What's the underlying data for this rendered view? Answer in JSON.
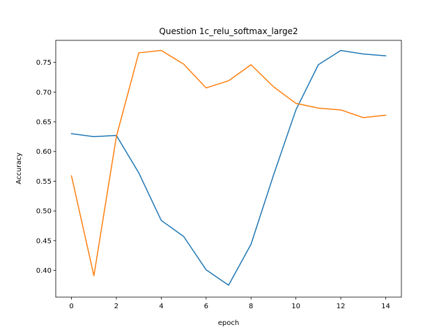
{
  "chart_data": {
    "type": "line",
    "title": "Question 1c_relu_softmax_large2",
    "xlabel": "epoch",
    "ylabel": "Accuracy",
    "x": [
      0,
      1,
      2,
      3,
      4,
      5,
      6,
      7,
      8,
      9,
      10,
      11,
      12,
      13,
      14
    ],
    "xlim": [
      -0.7,
      14.7
    ],
    "ylim": [
      0.355,
      0.787
    ],
    "xticks": [
      0,
      2,
      4,
      6,
      8,
      10,
      12,
      14
    ],
    "yticks": [
      0.4,
      0.45,
      0.5,
      0.55,
      0.6,
      0.65,
      0.7,
      0.75
    ],
    "grid": false,
    "legend": "none",
    "series": [
      {
        "color": "#1f77b4",
        "values": [
          0.63,
          0.625,
          0.627,
          0.564,
          0.484,
          0.457,
          0.401,
          0.375,
          0.444,
          0.56,
          0.67,
          0.746,
          0.77,
          0.764,
          0.761
        ]
      },
      {
        "color": "#ff7f0e",
        "values": [
          0.559,
          0.391,
          0.625,
          0.766,
          0.77,
          0.747,
          0.707,
          0.719,
          0.746,
          0.709,
          0.681,
          0.673,
          0.67,
          0.657,
          0.661
        ]
      }
    ]
  }
}
